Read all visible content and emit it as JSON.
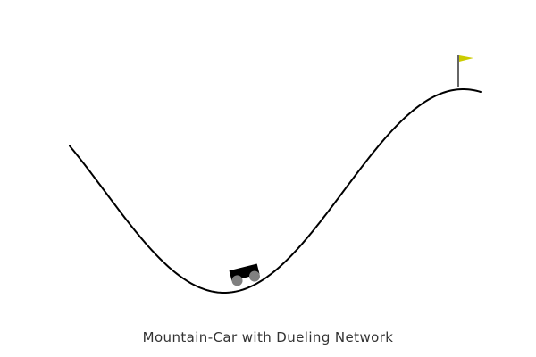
{
  "game": {
    "title": "Mountain-Car with Dueling Network"
  },
  "colors": {
    "background": "#ffffff",
    "track": "#000000",
    "car_body": "#000000",
    "wheels": "#808080",
    "flag": "#cccc00",
    "flag_pole": "#000000",
    "caption_text": "#333333"
  },
  "icons": {
    "car": "car-icon",
    "flag": "goal-flag-icon"
  }
}
